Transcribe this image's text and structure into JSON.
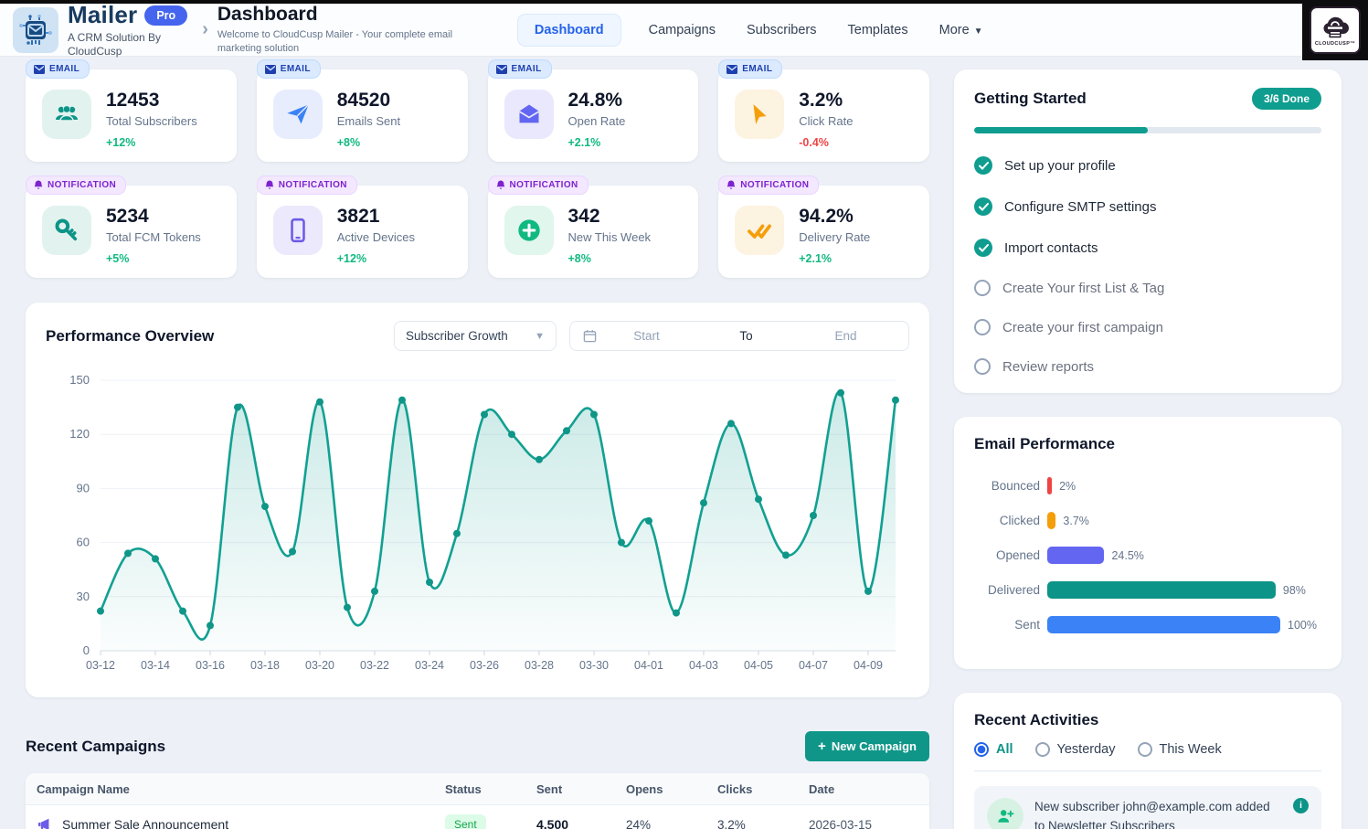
{
  "theme": {
    "accent_teal": "#0f9688",
    "accent_blue": "#2563eb",
    "positive": "#10b981",
    "negative": "#ef4444"
  },
  "header": {
    "brand": {
      "name": "Mailer",
      "badge": "Pro",
      "tagline": "A CRM Solution By CloudCusp"
    },
    "page_title": "Dashboard",
    "page_subtitle": "Welcome to CloudCusp Mailer - Your complete email marketing solution",
    "nav": [
      {
        "label": "Dashboard",
        "active": true
      },
      {
        "label": "Campaigns",
        "active": false
      },
      {
        "label": "Subscribers",
        "active": false
      },
      {
        "label": "Templates",
        "active": false
      },
      {
        "label": "More",
        "active": false,
        "has_dropdown": true
      }
    ],
    "corner_logo": "CLOUDCUSP™"
  },
  "stats": [
    {
      "badge": "EMAIL",
      "value": "12453",
      "label": "Total Subscribers",
      "change": "+12%",
      "trend": "up",
      "icon": "users"
    },
    {
      "badge": "EMAIL",
      "value": "84520",
      "label": "Emails Sent",
      "change": "+8%",
      "trend": "up",
      "icon": "paper-plane"
    },
    {
      "badge": "EMAIL",
      "value": "24.8%",
      "label": "Open Rate",
      "change": "+2.1%",
      "trend": "up",
      "icon": "mail-open"
    },
    {
      "badge": "EMAIL",
      "value": "3.2%",
      "label": "Click Rate",
      "change": "-0.4%",
      "trend": "down",
      "icon": "cursor"
    },
    {
      "badge": "NOTIFICATION",
      "value": "5234",
      "label": "Total FCM Tokens",
      "change": "+5%",
      "trend": "up",
      "icon": "key"
    },
    {
      "badge": "NOTIFICATION",
      "value": "3821",
      "label": "Active Devices",
      "change": "+12%",
      "trend": "up",
      "icon": "smartphone"
    },
    {
      "badge": "NOTIFICATION",
      "value": "342",
      "label": "New This Week",
      "change": "+8%",
      "trend": "up",
      "icon": "plus-circle"
    },
    {
      "badge": "NOTIFICATION",
      "value": "94.2%",
      "label": "Delivery Rate",
      "change": "+2.1%",
      "trend": "up",
      "icon": "check-double"
    }
  ],
  "performance": {
    "title": "Performance Overview",
    "metric_select": {
      "value": "Subscriber Growth"
    },
    "date_range": {
      "start_placeholder": "Start",
      "separator": "To",
      "end_placeholder": "End"
    }
  },
  "chart_data": [
    {
      "id": "subscriber-growth",
      "type": "line",
      "title": "Performance Overview",
      "series_name": "Subscriber Growth",
      "x": [
        "03-12",
        "03-13",
        "03-14",
        "03-15",
        "03-16",
        "03-17",
        "03-18",
        "03-19",
        "03-20",
        "03-21",
        "03-22",
        "03-23",
        "03-24",
        "03-25",
        "03-26",
        "03-27",
        "03-28",
        "03-29",
        "03-30",
        "03-31",
        "04-01",
        "04-02",
        "04-03",
        "04-04",
        "04-05",
        "04-06",
        "04-07",
        "04-08",
        "04-09",
        "04-10"
      ],
      "values": [
        22,
        54,
        51,
        22,
        14,
        135,
        80,
        55,
        138,
        24,
        33,
        139,
        38,
        65,
        131,
        120,
        106,
        122,
        131,
        60,
        72,
        21,
        82,
        126,
        84,
        53,
        75,
        143,
        33,
        139
      ],
      "ylim": [
        0,
        150
      ],
      "yticks": [
        0,
        30,
        60,
        90,
        120,
        150
      ],
      "x_tick_every": 2,
      "grid": true,
      "area": true,
      "line_color": "#12a092",
      "point_color": "#0f9688"
    },
    {
      "id": "email-performance",
      "type": "bar",
      "orientation": "horizontal",
      "title": "Email Performance",
      "categories": [
        "Bounced",
        "Clicked",
        "Opened",
        "Delivered",
        "Sent"
      ],
      "values": [
        2,
        3.7,
        24.5,
        98,
        100
      ],
      "value_labels": [
        "2%",
        "3.7%",
        "24.5%",
        "98%",
        "100%"
      ],
      "colors": [
        "#ef4444",
        "#f59e0b",
        "#6366f1",
        "#0d9488",
        "#3b82f6"
      ],
      "xlim": [
        0,
        100
      ],
      "legend": false
    }
  ],
  "getting_started": {
    "title": "Getting Started",
    "badge": "3/6 Done",
    "progress_pct": 50,
    "items": [
      {
        "label": "Set up your profile",
        "done": true
      },
      {
        "label": "Configure SMTP settings",
        "done": true
      },
      {
        "label": "Import contacts",
        "done": true
      },
      {
        "label": "Create Your first List & Tag",
        "done": false
      },
      {
        "label": "Create your first campaign",
        "done": false
      },
      {
        "label": "Review reports",
        "done": false
      }
    ]
  },
  "email_performance": {
    "title": "Email Performance"
  },
  "recent_activities": {
    "title": "Recent Activities",
    "filters": [
      {
        "label": "All",
        "selected": true
      },
      {
        "label": "Yesterday",
        "selected": false
      },
      {
        "label": "This Week",
        "selected": false
      }
    ],
    "items": [
      {
        "text": "New subscriber john@example.com added to Newsletter Subscribers",
        "icon": "user-plus"
      }
    ]
  },
  "recent_campaigns": {
    "title": "Recent Campaigns",
    "new_button": "New Campaign",
    "columns": [
      "Campaign Name",
      "Status",
      "Sent",
      "Opens",
      "Clicks",
      "Date"
    ],
    "rows": [
      {
        "name": "Summer Sale Announcement",
        "status": "Sent",
        "sent": "4,500",
        "opens": "24%",
        "clicks": "3.2%",
        "date": "2026-03-15"
      }
    ]
  }
}
